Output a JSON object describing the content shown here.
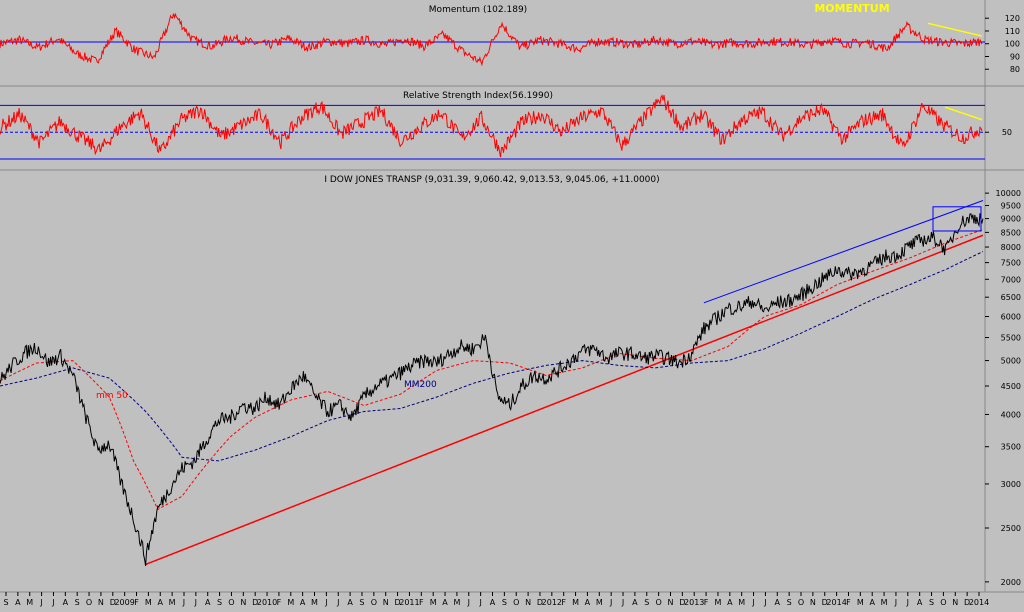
{
  "colors": {
    "background": "#c0c0c0",
    "price": "#000000",
    "indicator": "#ff0000",
    "reference": "#0000ff",
    "ma200": "#000080",
    "trendline": "#ff0000",
    "annotation": "#ffff00",
    "box": "#0000ff"
  },
  "panels": {
    "momentum_title": "Momentum (102.189)",
    "momentum_note": "MOMENTUM",
    "rsi_title": "Relative Strength Index(56.1990)",
    "price_title": "I DOW JONES TRANSP (9,031.39, 9,060.42, 9,013.53, 9,045.06, +11.0000)",
    "ma50_label": "mm 50",
    "ma200_label": "MM200"
  },
  "chart_data": [
    {
      "type": "line",
      "title": "Momentum (102.189)",
      "scale": "linear",
      "ylim": [
        70,
        128
      ],
      "yticks": [
        "120",
        "110",
        "100",
        "90",
        "80"
      ],
      "reference_line": 100,
      "series": [
        {
          "values": [
            100,
            103,
            97,
            104,
            92,
            86,
            110,
            95,
            89,
            124,
            103,
            98,
            105,
            101,
            99,
            104,
            97,
            102,
            100,
            103,
            99,
            104,
            98,
            107,
            94,
            85,
            116,
            97,
            103,
            100,
            96,
            102,
            101,
            99,
            103,
            100,
            102,
            99,
            101,
            100,
            102,
            101,
            99,
            103,
            100,
            101,
            96,
            114,
            103,
            101,
            100,
            102
          ]
        }
      ],
      "annotation": {
        "label": "MOMENTUM",
        "trend_from": 116,
        "trend_to": 106
      }
    },
    {
      "type": "line",
      "title": "Relative Strength Index(56.1990)",
      "scale": "linear",
      "ylim": [
        10,
        95
      ],
      "yticks": [
        "50"
      ],
      "guides": [
        80,
        50,
        20
      ],
      "series": [
        {
          "values": [
            55,
            70,
            38,
            62,
            44,
            30,
            56,
            72,
            27,
            63,
            76,
            45,
            58,
            70,
            39,
            66,
            80,
            48,
            61,
            74,
            40,
            57,
            72,
            43,
            66,
            28,
            61,
            70,
            50,
            66,
            74,
            35,
            63,
            88,
            55,
            70,
            41,
            64,
            73,
            46,
            67,
            75,
            42,
            63,
            70,
            32,
            80,
            58,
            44,
            56
          ]
        }
      ],
      "annotation": {
        "trend_from": 78,
        "trend_to": 64
      }
    },
    {
      "type": "line",
      "title": "I DOW JONES TRANSP (9,031.39, 9,060.42, 9,013.53, 9,045.06, +11.0000)",
      "scale": "log",
      "ylim": [
        1950,
        10300
      ],
      "yticks": [
        "10000",
        "9500",
        "9000",
        "8500",
        "8000",
        "7500",
        "7000",
        "6500",
        "6000",
        "5500",
        "5000",
        "4500",
        "4000",
        "3500",
        "3000",
        "2500",
        "2000"
      ],
      "x_month_labels": [
        "S",
        "A",
        "M",
        "J",
        "J",
        "A",
        "S",
        "O",
        "N",
        "D",
        "2009",
        "F",
        "M",
        "A",
        "M",
        "J",
        "J",
        "A",
        "S",
        "O",
        "N",
        "D",
        "2010",
        "F",
        "M",
        "A",
        "M",
        "J",
        "J",
        "A",
        "S",
        "O",
        "N",
        "D",
        "2011",
        "F",
        "M",
        "A",
        "M",
        "J",
        "J",
        "A",
        "S",
        "O",
        "N",
        "D",
        "2012",
        "F",
        "M",
        "A",
        "M",
        "J",
        "J",
        "A",
        "S",
        "O",
        "N",
        "D",
        "2013",
        "F",
        "M",
        "A",
        "M",
        "J",
        "J",
        "A",
        "S",
        "O",
        "N",
        "D",
        "2014",
        "F",
        "M",
        "A",
        "M",
        "J",
        "J",
        "A",
        "S",
        "O",
        "N",
        "D",
        "2014"
      ],
      "series": [
        {
          "name": "DOW JONES TRANSP",
          "x": [
            "2008-03",
            "2008-04",
            "2008-05",
            "2008-06",
            "2008-07",
            "2008-08",
            "2008-09",
            "2008-10",
            "2008-11",
            "2008-12",
            "2009-01",
            "2009-02",
            "2009-03",
            "2009-04",
            "2009-05",
            "2009-06",
            "2009-07",
            "2009-08",
            "2009-09",
            "2009-10",
            "2009-11",
            "2009-12",
            "2010-01",
            "2010-02",
            "2010-03",
            "2010-04",
            "2010-05",
            "2010-06",
            "2010-07",
            "2010-08",
            "2010-09",
            "2010-10",
            "2010-11",
            "2010-12",
            "2011-01",
            "2011-02",
            "2011-03",
            "2011-04",
            "2011-05",
            "2011-06",
            "2011-07",
            "2011-08",
            "2011-09",
            "2011-10",
            "2011-11",
            "2011-12",
            "2012-01",
            "2012-02",
            "2012-03",
            "2012-04",
            "2012-05",
            "2012-06",
            "2012-07",
            "2012-08",
            "2012-09",
            "2012-10",
            "2012-11",
            "2012-12",
            "2013-01",
            "2013-02",
            "2013-03",
            "2013-04",
            "2013-05",
            "2013-06",
            "2013-07",
            "2013-08",
            "2013-09",
            "2013-10",
            "2013-11",
            "2013-12",
            "2014-01",
            "2014-02",
            "2014-03",
            "2014-04",
            "2014-05",
            "2014-06",
            "2014-07",
            "2014-08",
            "2014-09",
            "2014-10",
            "2014-11",
            "2014-12"
          ],
          "values": [
            4600,
            4900,
            5150,
            5300,
            4950,
            5100,
            4700,
            4000,
            3450,
            3550,
            3000,
            2600,
            2200,
            2700,
            2950,
            3200,
            3300,
            3600,
            3900,
            3950,
            4150,
            4100,
            4300,
            4150,
            4450,
            4700,
            4300,
            4050,
            4150,
            3950,
            4300,
            4500,
            4600,
            4750,
            4900,
            5000,
            4950,
            5150,
            5300,
            5250,
            5500,
            4300,
            4150,
            4500,
            4700,
            4650,
            4800,
            5000,
            5200,
            5250,
            5050,
            5150,
            5150,
            5050,
            5100,
            5050,
            4950,
            5150,
            5700,
            5950,
            6200,
            6250,
            6400,
            6150,
            6350,
            6400,
            6550,
            6800,
            7050,
            7300,
            7150,
            7250,
            7450,
            7700,
            7750,
            8050,
            8250,
            8300,
            7900,
            8800,
            9050,
            9000
          ]
        },
        {
          "name": "mm 50",
          "x": [
            "2008-03",
            "2008-06",
            "2008-09",
            "2008-12",
            "2009-02",
            "2009-04",
            "2009-06",
            "2009-08",
            "2009-10",
            "2009-12",
            "2010-03",
            "2010-06",
            "2010-09",
            "2010-12",
            "2011-03",
            "2011-06",
            "2011-09",
            "2011-12",
            "2012-03",
            "2012-06",
            "2012-09",
            "2012-12",
            "2013-03",
            "2013-06",
            "2013-09",
            "2013-12",
            "2014-03",
            "2014-06",
            "2014-09",
            "2014-12"
          ],
          "values": [
            4600,
            4950,
            5000,
            4300,
            3300,
            2700,
            2850,
            3250,
            3650,
            3950,
            4250,
            4400,
            4150,
            4350,
            4800,
            5000,
            4950,
            4700,
            4850,
            5150,
            5050,
            5000,
            5300,
            6000,
            6300,
            6850,
            7250,
            7650,
            8150,
            8600
          ]
        },
        {
          "name": "MM200",
          "x": [
            "2008-03",
            "2008-06",
            "2008-09",
            "2008-12",
            "2009-03",
            "2009-06",
            "2009-09",
            "2009-12",
            "2010-03",
            "2010-06",
            "2010-09",
            "2010-12",
            "2011-03",
            "2011-06",
            "2011-09",
            "2011-12",
            "2012-03",
            "2012-06",
            "2012-09",
            "2012-12",
            "2013-03",
            "2013-06",
            "2013-09",
            "2013-12",
            "2014-03",
            "2014-06",
            "2014-09",
            "2014-12"
          ],
          "values": [
            4500,
            4650,
            4850,
            4650,
            4050,
            3350,
            3300,
            3450,
            3650,
            3900,
            4050,
            4100,
            4300,
            4550,
            4750,
            4900,
            5000,
            4900,
            4850,
            4950,
            5000,
            5250,
            5600,
            6000,
            6450,
            6850,
            7300,
            7850
          ]
        },
        {
          "name": "trendline",
          "x": [
            "2009-03",
            "2014-12"
          ],
          "values": [
            2150,
            8400
          ]
        },
        {
          "name": "channel",
          "x": [
            "2013-01",
            "2014-12"
          ],
          "values": [
            6350,
            9700
          ]
        }
      ],
      "legend": "none",
      "grid": false
    }
  ]
}
